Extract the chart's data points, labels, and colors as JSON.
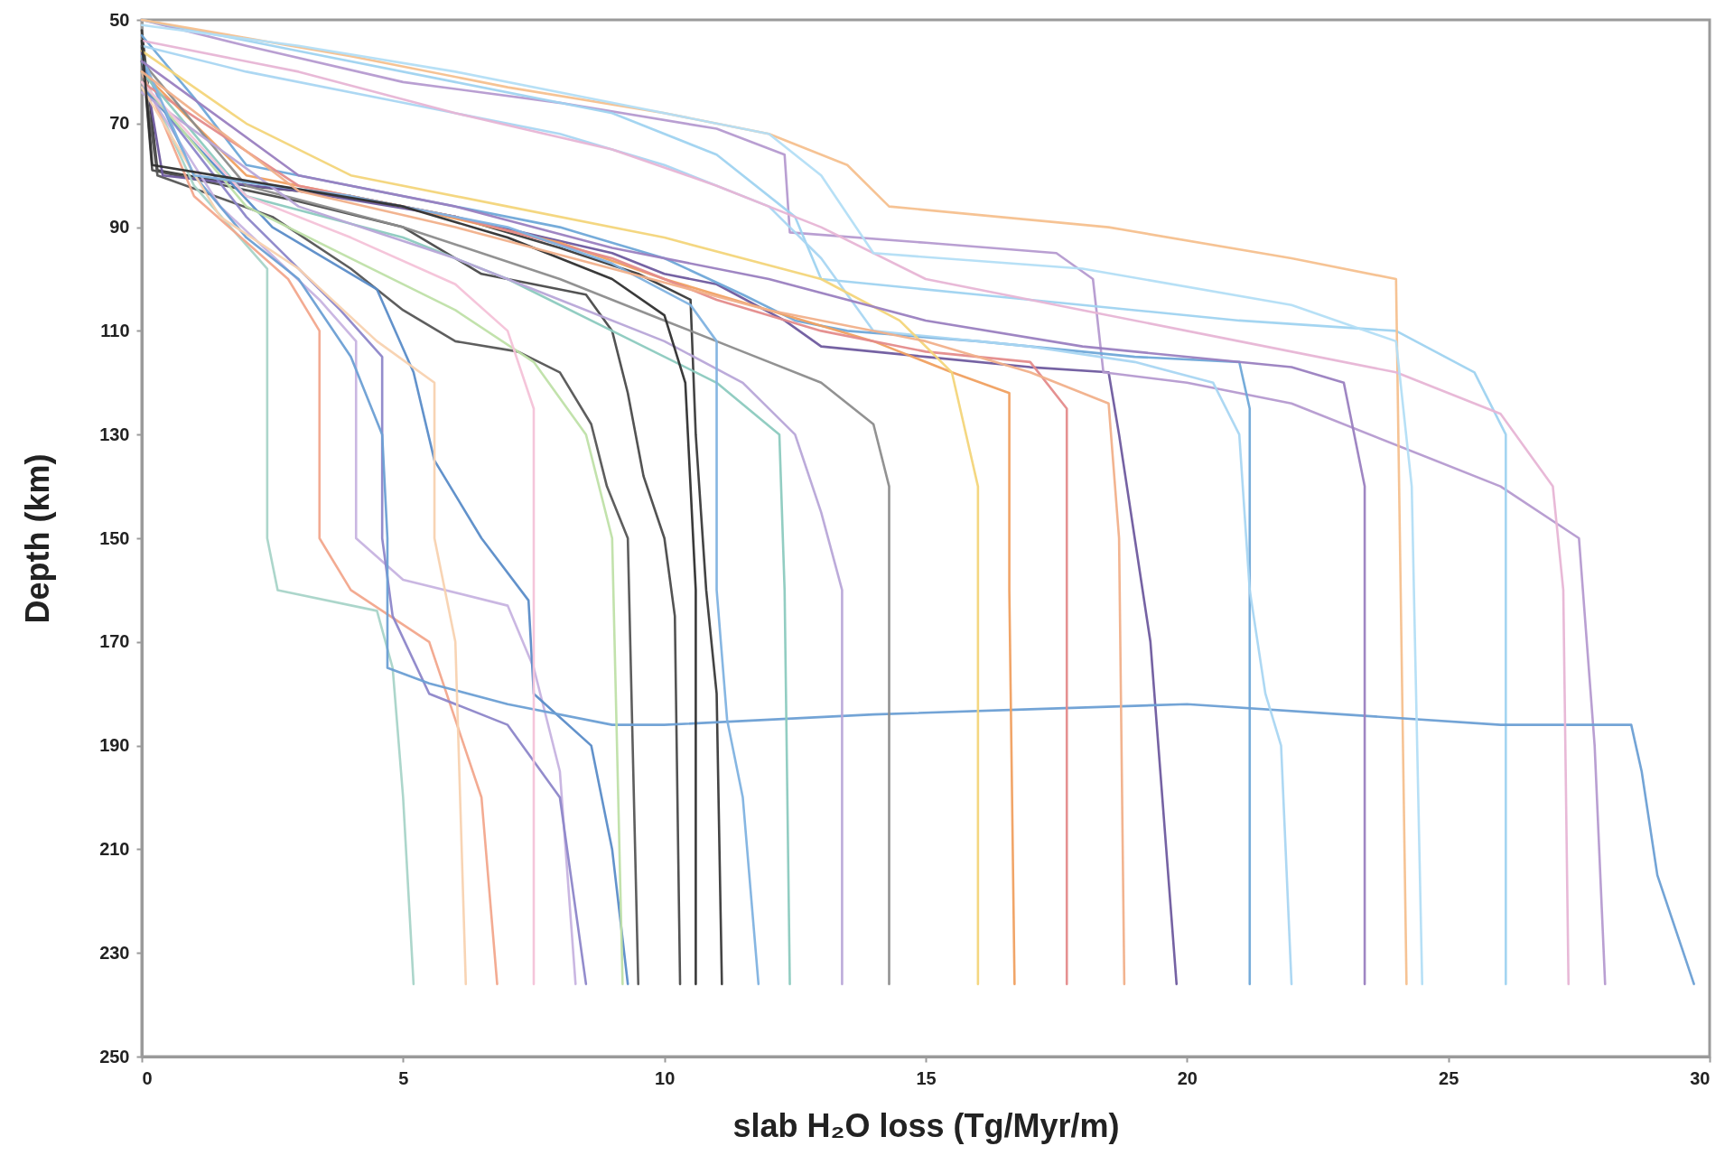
{
  "chart_data": {
    "type": "line",
    "xlabel": "slab H₂O loss (Tg/Myr/m)",
    "ylabel": "Depth (km)",
    "xlim": [
      0,
      30
    ],
    "xticks": [
      0,
      5,
      10,
      15,
      20,
      25,
      30
    ],
    "ylim": [
      250,
      50
    ],
    "yticks": [
      50,
      70,
      90,
      110,
      130,
      150,
      170,
      190,
      210,
      230,
      250
    ],
    "series": [
      {
        "color": "#3a3a3a",
        "x": [
          0,
          0.3,
          2,
          4,
          6,
          8,
          9.5,
          10.5,
          10.6,
          10.8,
          11,
          11.1
        ],
        "values": [
          52,
          79,
          82,
          84,
          88,
          94,
          99,
          104,
          130,
          160,
          180,
          236
        ]
      },
      {
        "color": "#4a4a4a",
        "x": [
          0,
          0.2,
          3,
          5,
          6.5,
          7.5,
          8.5,
          9,
          9.3,
          9.6,
          10,
          10.2,
          10.3
        ],
        "values": [
          55,
          79,
          85,
          90,
          99,
          101,
          103,
          110,
          122,
          138,
          150,
          165,
          236
        ]
      },
      {
        "color": "#555555",
        "x": [
          0,
          0.3,
          2.5,
          4,
          5,
          6,
          7.2,
          8,
          8.6,
          8.9,
          9.3,
          9.5
        ],
        "values": [
          58,
          80,
          88,
          98,
          106,
          112,
          114,
          118,
          128,
          140,
          150,
          236
        ]
      },
      {
        "color": "#6e5a9e",
        "x": [
          0,
          0.4,
          3,
          6,
          9,
          10,
          11,
          12.3,
          13,
          15,
          17,
          18.5,
          18.7,
          19,
          19.3,
          19.8
        ],
        "values": [
          56,
          80,
          83,
          88,
          95,
          99,
          101,
          108,
          113,
          115,
          117,
          118,
          130,
          150,
          170,
          236
        ]
      },
      {
        "color": "#b59ad0",
        "x": [
          0,
          2,
          5,
          8,
          11,
          12.3,
          12.4,
          15,
          17.5,
          18.2,
          18.4,
          20,
          22,
          26,
          27.5,
          27.8,
          28
        ],
        "values": [
          50,
          55,
          62,
          66,
          71,
          76,
          91,
          93,
          95,
          100,
          118,
          120,
          124,
          140,
          150,
          190,
          236
        ]
      },
      {
        "color": "#9fd3f0",
        "x": [
          0,
          3,
          6,
          9,
          11,
          12.5,
          13,
          16,
          19,
          21,
          24,
          25.5,
          26.1,
          26.1
        ],
        "values": [
          50,
          56,
          62,
          68,
          76,
          88,
          100,
          103,
          106,
          108,
          110,
          118,
          130,
          236
        ]
      },
      {
        "color": "#6fa8d8",
        "x": [
          0,
          1,
          2,
          5,
          8,
          10,
          11.5,
          12.5,
          13.5,
          16,
          19,
          21,
          21.2,
          21.2
        ],
        "values": [
          53,
          65,
          78,
          84,
          90,
          96,
          103,
          108,
          110,
          112,
          115,
          116,
          125,
          236
        ]
      },
      {
        "color": "#f5c08e",
        "x": [
          0,
          4,
          7,
          10,
          12,
          13.5,
          14.3,
          18.5,
          22,
          24,
          24.2
        ],
        "values": [
          50,
          57,
          63,
          68,
          72,
          78,
          86,
          90,
          96,
          100,
          236
        ]
      },
      {
        "color": "#a8d4c8",
        "x": [
          0,
          1,
          2.4,
          2.4,
          2.6,
          4.5,
          4.8,
          5,
          5.2
        ],
        "values": [
          60,
          82,
          98,
          150,
          160,
          164,
          175,
          200,
          236
        ]
      },
      {
        "color": "#f2a68c",
        "x": [
          0,
          1,
          2.8,
          3.4,
          3.4,
          4,
          5.5,
          6,
          6.5,
          6.8
        ],
        "values": [
          60,
          84,
          100,
          110,
          150,
          160,
          170,
          185,
          200,
          236
        ]
      },
      {
        "color": "#c7b3e0",
        "x": [
          0,
          1.5,
          3.4,
          4.1,
          4.1,
          5,
          7,
          7.5,
          8,
          8.3
        ],
        "values": [
          62,
          86,
          104,
          112,
          150,
          158,
          163,
          175,
          195,
          236
        ]
      },
      {
        "color": "#8d86c9",
        "x": [
          0,
          2,
          3.8,
          4.6,
          4.6,
          4.8,
          5.5,
          7,
          8,
          8.5
        ],
        "values": [
          62,
          88,
          106,
          115,
          150,
          165,
          180,
          186,
          200,
          236
        ]
      },
      {
        "color": "#5a8cc8",
        "x": [
          0,
          2.5,
          4.5,
          5.2,
          5.6,
          6.5,
          7.4,
          7.5,
          8.6,
          9,
          9.3
        ],
        "values": [
          63,
          90,
          102,
          118,
          135,
          150,
          162,
          180,
          190,
          210,
          236
        ]
      },
      {
        "color": "#6b9fd4",
        "x": [
          0,
          1,
          2,
          3,
          4,
          4.6,
          4.7,
          4.7,
          5.5,
          7,
          9,
          10,
          14,
          17,
          20,
          23,
          26,
          28.5,
          28.7,
          29,
          29.5,
          29.7
        ],
        "values": [
          58,
          80,
          92,
          100,
          115,
          130,
          150,
          175,
          178,
          182,
          186,
          186,
          184,
          183,
          182,
          184,
          186,
          186,
          195,
          215,
          230,
          236
        ]
      },
      {
        "color": "#a9d6f2",
        "x": [
          0,
          2,
          5,
          8,
          10,
          12,
          13,
          14,
          17,
          19,
          20.5,
          21,
          21.2,
          21.5,
          21.8,
          22
        ],
        "values": [
          55,
          60,
          66,
          72,
          78,
          86,
          96,
          110,
          113,
          116,
          120,
          130,
          160,
          180,
          190,
          236
        ]
      },
      {
        "color": "#e7b5d5",
        "x": [
          0,
          3,
          6,
          9,
          11,
          13,
          15,
          18,
          21,
          24,
          26,
          27,
          27.2,
          27.3
        ],
        "values": [
          54,
          60,
          68,
          75,
          82,
          90,
          100,
          106,
          112,
          118,
          126,
          140,
          160,
          236
        ]
      },
      {
        "color": "#f0a060",
        "x": [
          0,
          2,
          5,
          8,
          10,
          12,
          14,
          15.5,
          16.6,
          16.6,
          16.7
        ],
        "values": [
          60,
          80,
          86,
          93,
          100,
          106,
          112,
          118,
          122,
          160,
          236
        ]
      },
      {
        "color": "#e48b8b",
        "x": [
          0,
          3,
          6,
          9,
          11,
          13,
          15,
          17,
          17.7,
          17.7
        ],
        "values": [
          62,
          82,
          88,
          96,
          104,
          110,
          114,
          116,
          125,
          236
        ]
      },
      {
        "color": "#8c8c8c",
        "x": [
          0,
          2,
          5,
          8,
          10,
          11.5,
          13,
          14,
          14.3,
          14.3
        ],
        "values": [
          58,
          82,
          90,
          100,
          108,
          114,
          120,
          128,
          140,
          236
        ]
      },
      {
        "color": "#f3d57a",
        "x": [
          0,
          2,
          4,
          7,
          10,
          13,
          14.5,
          15.5,
          16,
          16
        ],
        "values": [
          56,
          70,
          80,
          86,
          92,
          100,
          108,
          118,
          140,
          236
        ]
      },
      {
        "color": "#8ccabf",
        "x": [
          0,
          2,
          5,
          7,
          9,
          11,
          12.2,
          12.3,
          12.4
        ],
        "values": [
          60,
          84,
          92,
          100,
          110,
          120,
          130,
          160,
          236
        ]
      },
      {
        "color": "#b8a6d8",
        "x": [
          0,
          3,
          6,
          8,
          10,
          11.5,
          12.5,
          13,
          13.4,
          13.4
        ],
        "values": [
          64,
          86,
          96,
          104,
          112,
          120,
          130,
          145,
          160,
          236
        ]
      },
      {
        "color": "#bfe0a8",
        "x": [
          0,
          2,
          4,
          6,
          7.5,
          8.5,
          9,
          9.2
        ],
        "values": [
          62,
          86,
          96,
          106,
          116,
          130,
          150,
          236
        ]
      },
      {
        "color": "#f4c2d8",
        "x": [
          0,
          2,
          4,
          6,
          7,
          7.5,
          7.5
        ],
        "values": [
          62,
          84,
          92,
          101,
          110,
          125,
          236
        ]
      },
      {
        "color": "#f8d2b0",
        "x": [
          0,
          1.5,
          3,
          4.5,
          5.6,
          5.6,
          6,
          6.2
        ],
        "values": [
          63,
          88,
          98,
          112,
          120,
          150,
          170,
          236
        ]
      },
      {
        "color": "#7fb2e0",
        "x": [
          0,
          1,
          4,
          7,
          9,
          10.5,
          11,
          11,
          11.2,
          11.5,
          11.8
        ],
        "values": [
          57,
          80,
          84,
          90,
          97,
          105,
          112,
          160,
          185,
          200,
          236
        ]
      },
      {
        "color": "#2f2f2f",
        "x": [
          0,
          0.2,
          2,
          5,
          7,
          9,
          10,
          10.4,
          10.6,
          10.6
        ],
        "values": [
          54,
          78,
          81,
          86,
          92,
          100,
          107,
          120,
          160,
          236
        ]
      },
      {
        "color": "#b3def5",
        "x": [
          0,
          3,
          6,
          9,
          12,
          13,
          14,
          18,
          22,
          24,
          24.3,
          24.5
        ],
        "values": [
          51,
          55,
          60,
          66,
          72,
          80,
          95,
          98,
          105,
          112,
          140,
          236
        ]
      },
      {
        "color": "#9a7fc0",
        "x": [
          0,
          3,
          6,
          9,
          12,
          15,
          18,
          22,
          23,
          23.4,
          23.4
        ],
        "values": [
          58,
          80,
          86,
          94,
          100,
          108,
          113,
          117,
          120,
          140,
          236
        ]
      },
      {
        "color": "#f1b08a",
        "x": [
          0,
          3,
          6,
          9,
          12,
          15,
          17,
          18.5,
          18.7,
          18.8
        ],
        "values": [
          60,
          83,
          90,
          98,
          106,
          112,
          118,
          124,
          150,
          236
        ]
      }
    ]
  }
}
